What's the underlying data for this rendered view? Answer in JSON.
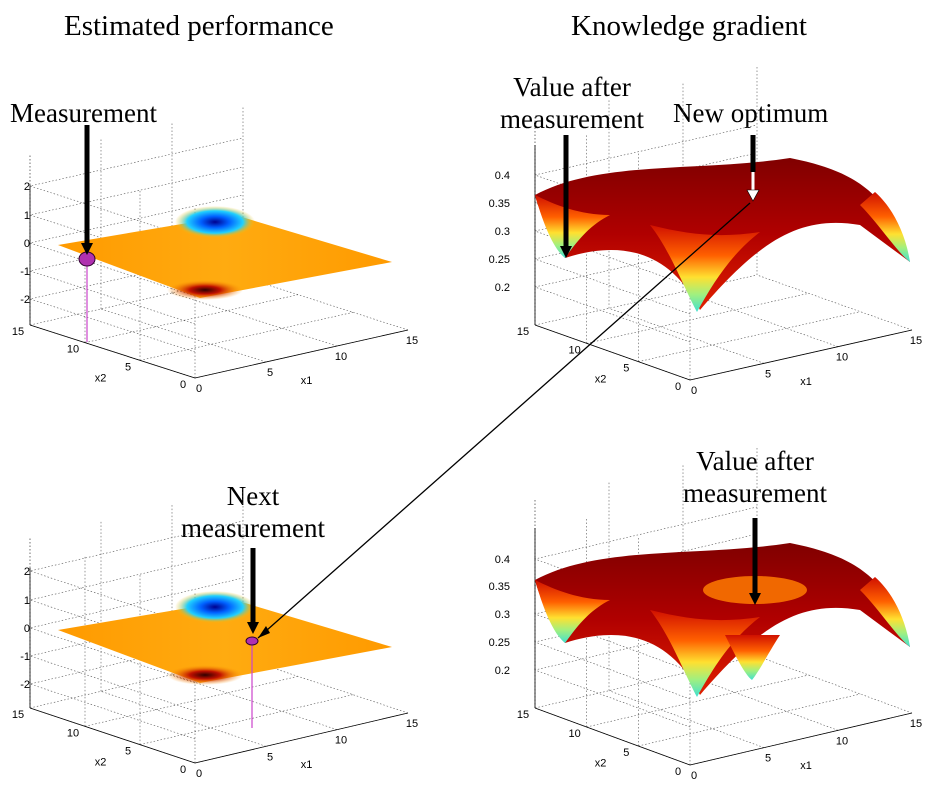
{
  "headings": {
    "left": "Estimated performance",
    "right": "Knowledge gradient"
  },
  "annotations": {
    "measurement": "Measurement",
    "value_after_line1": "Value after",
    "value_after_line2": "measurement",
    "new_optimum": "New optimum",
    "next_line1": "Next",
    "next_line2": "measurement"
  },
  "chart_data": [
    {
      "type": "surface",
      "panel": "top-left",
      "xlabel": "x1",
      "ylabel": "x2",
      "zlabel": "",
      "xlim": [
        0,
        15
      ],
      "ylim": [
        0,
        15
      ],
      "zlim": [
        -2,
        2
      ],
      "xticks": [
        "0",
        "5",
        "10",
        "15"
      ],
      "yticks": [
        "0",
        "5",
        "10",
        "15"
      ],
      "zticks": [
        "-2",
        "-1",
        "0",
        "1",
        "2"
      ],
      "colormap": [
        "#00008f",
        "#0060ff",
        "#20d0ff",
        "#ffc000",
        "#ff9a00",
        "#c01000",
        "#500000"
      ],
      "measurement_point": {
        "x1": 0,
        "x2": 10,
        "z": -0.4
      }
    },
    {
      "type": "surface",
      "panel": "top-right",
      "xlabel": "x1",
      "ylabel": "x2",
      "zlabel": "",
      "xlim": [
        0,
        15
      ],
      "ylim": [
        0,
        15
      ],
      "zlim": [
        0.15,
        0.4
      ],
      "xticks": [
        "0",
        "5",
        "10",
        "15"
      ],
      "yticks": [
        "0",
        "5",
        "10",
        "15"
      ],
      "zticks": [
        "0.2",
        "0.25",
        "0.3",
        "0.35",
        "0.4"
      ],
      "colormap": [
        "#40e0d0",
        "#a0f080",
        "#ffff40",
        "#ffa000",
        "#ff3000",
        "#c00000",
        "#800000"
      ]
    },
    {
      "type": "surface",
      "panel": "bottom-left",
      "xlabel": "x1",
      "ylabel": "x2",
      "zlabel": "",
      "xlim": [
        0,
        15
      ],
      "ylim": [
        0,
        15
      ],
      "zlim": [
        -2,
        2
      ],
      "xticks": [
        "0",
        "5",
        "10",
        "15"
      ],
      "yticks": [
        "0",
        "5",
        "10",
        "15"
      ],
      "zticks": [
        "-2",
        "-1",
        "0",
        "1",
        "2"
      ],
      "colormap": [
        "#00008f",
        "#0060ff",
        "#20d0ff",
        "#ffc000",
        "#ff9a00",
        "#c01000",
        "#500000"
      ],
      "measurement_point": {
        "x1": 10,
        "x2": 5,
        "z": -0.5
      }
    },
    {
      "type": "surface",
      "panel": "bottom-right",
      "xlabel": "x1",
      "ylabel": "x2",
      "zlabel": "",
      "xlim": [
        0,
        15
      ],
      "ylim": [
        0,
        15
      ],
      "zlim": [
        0.15,
        0.4
      ],
      "xticks": [
        "0",
        "5",
        "10",
        "15"
      ],
      "yticks": [
        "0",
        "5",
        "10",
        "15"
      ],
      "zticks": [
        "0.2",
        "0.25",
        "0.3",
        "0.35",
        "0.4"
      ],
      "colormap": [
        "#40e0d0",
        "#a0f080",
        "#ffff40",
        "#ffa000",
        "#ff3000",
        "#c00000",
        "#800000"
      ]
    }
  ]
}
